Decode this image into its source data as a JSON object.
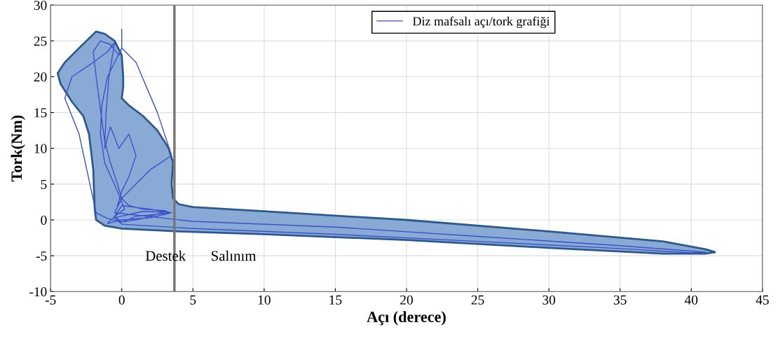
{
  "chart_data": {
    "type": "line",
    "xlabel": "Açı (derece)",
    "ylabel": "Tork(Nm)",
    "xlim": [
      -5,
      45
    ],
    "ylim": [
      -10,
      30
    ],
    "xticks": [
      -5,
      0,
      5,
      10,
      15,
      20,
      25,
      30,
      35,
      40,
      45
    ],
    "yticks": [
      -10,
      -5,
      0,
      5,
      10,
      15,
      20,
      25,
      30
    ],
    "grid": true,
    "legend": "top",
    "series": [
      {
        "type": "area",
        "color": "#8aaad6",
        "x": [
          -1.8,
          -1.2,
          -0.5,
          0,
          0.1,
          0.1,
          0,
          0.5,
          1.5,
          2.5,
          3.3,
          3.6,
          3.5,
          3.6,
          4,
          5,
          10,
          20,
          30,
          38,
          41,
          41.7,
          41,
          38,
          30,
          20,
          10,
          4,
          0,
          -1.2,
          -1.8,
          -1.9,
          -2,
          -2.3,
          -2.7,
          -3.5,
          -4.3,
          -4.5,
          -4,
          -3,
          -1.8
        ],
        "values": [
          26.3,
          26,
          25,
          23,
          20,
          18.5,
          17,
          16,
          14.5,
          12.5,
          10,
          8,
          5,
          3,
          2.2,
          1.8,
          1.2,
          0,
          -1.6,
          -3,
          -4.1,
          -4.5,
          -4.7,
          -4.7,
          -3.9,
          -2.8,
          -2,
          -1.6,
          -1.2,
          -0.8,
          0,
          1.5,
          7,
          12,
          14.5,
          16.5,
          19,
          20.5,
          22,
          24,
          26.3
        ]
      },
      {
        "name": "Diz mafsalı açı/tork grafiği",
        "color": "#3a52cc",
        "x": [
          0,
          0,
          -0.2,
          -0.8,
          -1.5,
          -2,
          -1.8,
          -1.6,
          -1.4,
          -1.2,
          -0.8,
          -0.3,
          0,
          0.5,
          1.5,
          3,
          3.4,
          2.5,
          1,
          0,
          -0.5,
          0,
          2,
          3.5,
          2,
          0,
          -1,
          -0.5,
          0.2,
          -0.3,
          -1.2,
          -1.5,
          -1.4,
          -1,
          0,
          1,
          2.5,
          3.5,
          2,
          0,
          -0.5,
          5,
          15,
          25,
          35,
          41,
          40,
          35,
          25,
          15,
          5,
          0,
          -0.5,
          1.5,
          3,
          1.5,
          0,
          -1,
          -1.8,
          -3,
          -4,
          -3.5,
          -2,
          -1,
          -0.5,
          -0.9,
          -1.1,
          -1.2,
          -0.8,
          -0.2,
          0.5,
          1,
          0.5,
          0,
          -0.3
        ],
        "values": [
          26.6,
          24,
          23,
          24.5,
          25,
          23.5,
          20,
          17,
          14,
          11,
          8,
          5,
          3,
          2,
          1.5,
          1.3,
          1,
          0.8,
          0.5,
          -0.3,
          0.5,
          2,
          1.5,
          1,
          0.3,
          0,
          -0.5,
          0.5,
          1.5,
          4,
          8,
          12,
          16,
          20,
          24,
          22,
          15,
          9,
          7,
          3,
          1,
          -0.2,
          -1,
          -2.3,
          -3.6,
          -4.5,
          -4.6,
          -4,
          -3,
          -2,
          -1.2,
          -0.6,
          0.3,
          1.2,
          1.1,
          0.2,
          -0.3,
          0.2,
          1,
          12,
          17,
          20,
          22,
          23.5,
          24.8,
          20,
          15,
          10,
          13,
          10,
          12,
          9,
          6,
          4,
          2
        ]
      }
    ],
    "ref_lines": [
      {
        "axis": "x",
        "value": 3.7,
        "color": "#777777"
      }
    ],
    "annotations": [
      "Destek",
      "Salınım"
    ]
  }
}
